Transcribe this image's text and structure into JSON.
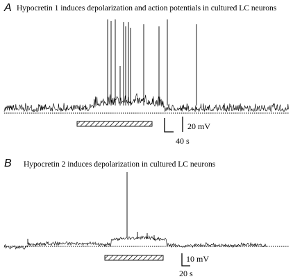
{
  "panels": [
    {
      "letter": "A",
      "title": "Hypocretin 1 induces depolarization and action potentials in cultured LC neurons",
      "scale_bar": {
        "voltage": "20 mV",
        "time": "40 s"
      }
    },
    {
      "letter": "B",
      "title": "Hypocretin 2 induces depolarization in cultured LC neurons",
      "scale_bar": {
        "voltage": "10 mV",
        "time": "20 s"
      }
    }
  ],
  "colors": {
    "trace": "#000000",
    "background": "#ffffff"
  }
}
